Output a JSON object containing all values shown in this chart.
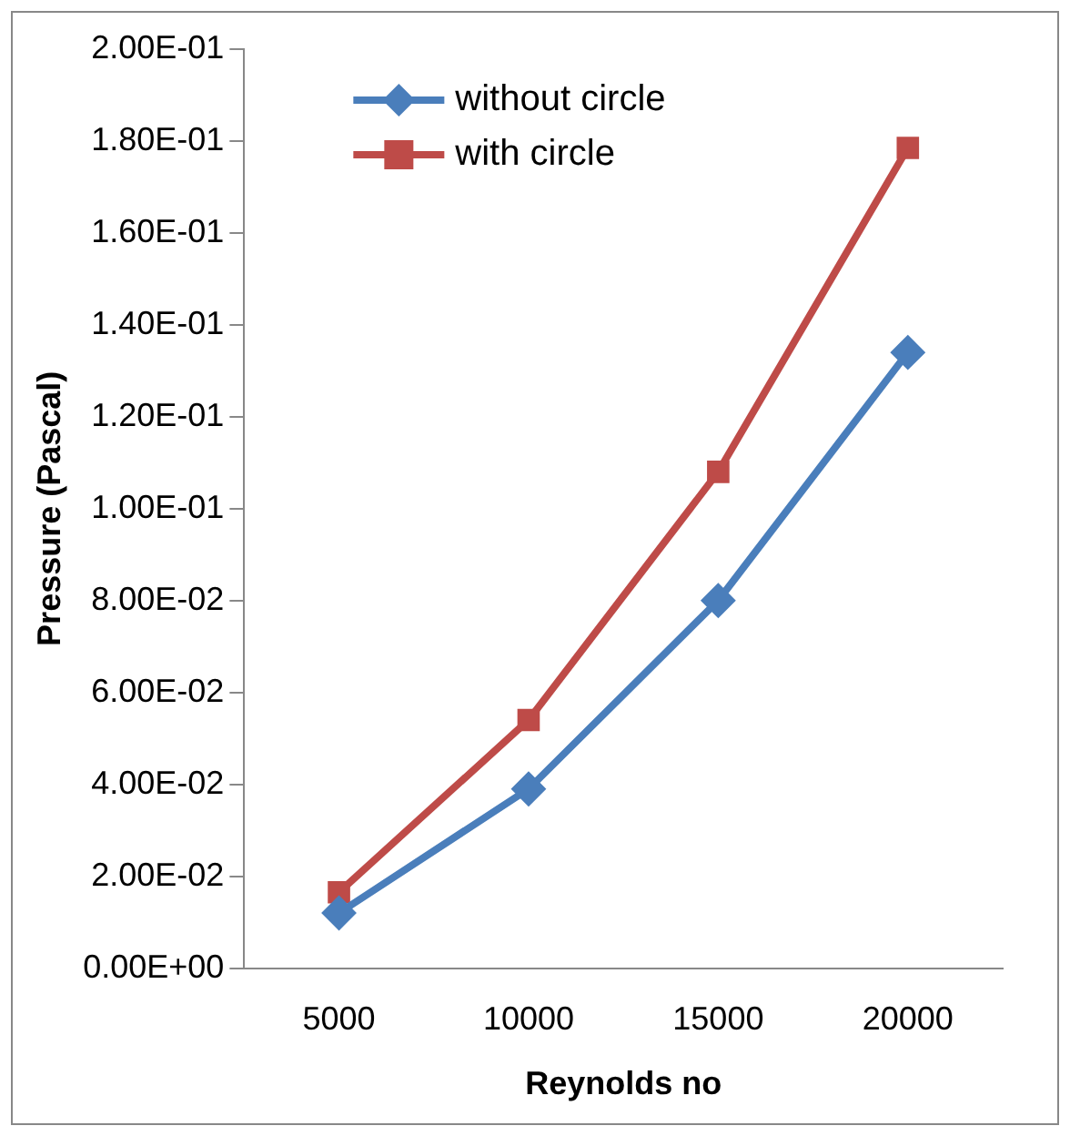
{
  "chart_data": {
    "type": "line",
    "xlabel": "Reynolds no",
    "ylabel": "Pressure (Pascal)",
    "categories": [
      "5000",
      "10000",
      "15000",
      "20000"
    ],
    "series": [
      {
        "name": "without circle",
        "color": "#4a7ebb",
        "values": [
          0.012,
          0.039,
          0.08,
          0.134
        ],
        "marker": "diamond"
      },
      {
        "name": "with circle",
        "color": "#be4b48",
        "values": [
          0.0165,
          0.054,
          0.108,
          0.1785
        ],
        "marker": "square"
      }
    ],
    "ylim": [
      0,
      0.2
    ],
    "yticks": [
      {
        "value": 0,
        "label": "0.00E+00"
      },
      {
        "value": 0.02,
        "label": "2.00E-02"
      },
      {
        "value": 0.04,
        "label": "4.00E-02"
      },
      {
        "value": 0.06,
        "label": "6.00E-02"
      },
      {
        "value": 0.08,
        "label": "8.00E-02"
      },
      {
        "value": 0.1,
        "label": "1.00E-01"
      },
      {
        "value": 0.12,
        "label": "1.20E-01"
      },
      {
        "value": 0.14,
        "label": "1.40E-01"
      },
      {
        "value": 0.16,
        "label": "1.60E-01"
      },
      {
        "value": 0.18,
        "label": "1.80E-01"
      },
      {
        "value": 0.2,
        "label": "2.00E-01"
      }
    ],
    "grid": false,
    "legend": "top left",
    "line_style": "solid"
  }
}
